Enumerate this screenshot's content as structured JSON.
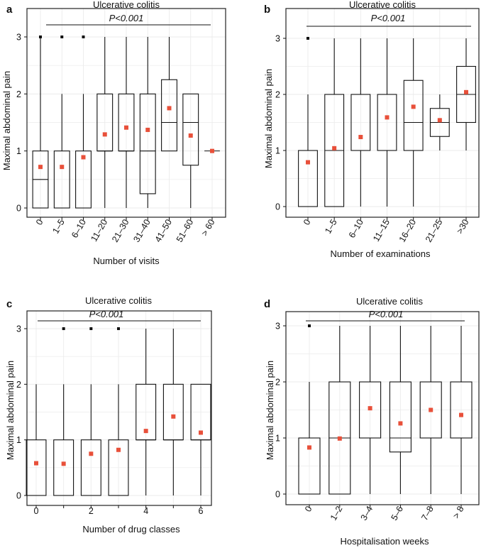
{
  "chart_data": [
    {
      "panel": "a",
      "type": "box",
      "title": "Ulcerative colitis",
      "annotation": "P<0.001",
      "xlabel": "Number of visits",
      "ylabel": "Maximal abdominal pain",
      "ylim": [
        0,
        3
      ],
      "yticks": [
        "0",
        "1",
        "2",
        "3"
      ],
      "categories": [
        "0",
        "1–5",
        "6–10",
        "11–20",
        "21–30",
        "31–40",
        "41–50",
        "51–60",
        "> 60"
      ],
      "boxes": [
        {
          "low": 0,
          "q1": 0,
          "median": 0.5,
          "q3": 1,
          "high": 3,
          "mean": 0.72,
          "outliers": [
            3
          ]
        },
        {
          "low": 0,
          "q1": 0,
          "median": 0,
          "q3": 1,
          "high": 2,
          "mean": 0.72,
          "outliers": [
            3
          ]
        },
        {
          "low": 0,
          "q1": 0,
          "median": 0,
          "q3": 1,
          "high": 2,
          "mean": 0.89,
          "outliers": [
            3
          ]
        },
        {
          "low": 0,
          "q1": 1,
          "median": 1,
          "q3": 2,
          "high": 3,
          "mean": 1.29,
          "outliers": []
        },
        {
          "low": 0,
          "q1": 1,
          "median": 1,
          "q3": 2,
          "high": 3,
          "mean": 1.41,
          "outliers": []
        },
        {
          "low": 0,
          "q1": 0.25,
          "median": 1,
          "q3": 2,
          "high": 3,
          "mean": 1.37,
          "outliers": []
        },
        {
          "low": 1,
          "q1": 1,
          "median": 1.5,
          "q3": 2.25,
          "high": 3,
          "mean": 1.75,
          "outliers": []
        },
        {
          "low": 0,
          "q1": 0.75,
          "median": 1.5,
          "q3": 2,
          "high": 2,
          "mean": 1.27,
          "outliers": []
        },
        {
          "low": 1,
          "q1": 1,
          "median": 1,
          "q3": 1,
          "high": 1,
          "mean": 1.0,
          "outliers": []
        }
      ]
    },
    {
      "panel": "b",
      "type": "box",
      "title": "Ulcerative colitis",
      "annotation": "P<0.001",
      "xlabel": "Number of  examinations",
      "ylabel": "Maximal abdominal pain",
      "ylim": [
        0,
        3
      ],
      "yticks": [
        "0",
        "1",
        "2",
        "3"
      ],
      "categories": [
        "0",
        "1–5",
        "6–10",
        "11–15",
        "16–20",
        "21–25",
        ">30"
      ],
      "boxes": [
        {
          "low": 0,
          "q1": 0,
          "median": 0,
          "q3": 1,
          "high": 2,
          "mean": 0.79,
          "outliers": [
            3
          ]
        },
        {
          "low": 0,
          "q1": 0,
          "median": 1,
          "q3": 2,
          "high": 3,
          "mean": 1.04,
          "outliers": []
        },
        {
          "low": 0,
          "q1": 1,
          "median": 1,
          "q3": 2,
          "high": 3,
          "mean": 1.24,
          "outliers": []
        },
        {
          "low": 0,
          "q1": 1,
          "median": 1,
          "q3": 2,
          "high": 3,
          "mean": 1.59,
          "outliers": []
        },
        {
          "low": 0,
          "q1": 1,
          "median": 1.5,
          "q3": 2.25,
          "high": 3,
          "mean": 1.78,
          "outliers": []
        },
        {
          "low": 1,
          "q1": 1.25,
          "median": 1.5,
          "q3": 1.75,
          "high": 2,
          "mean": 1.54,
          "outliers": []
        },
        {
          "low": 1,
          "q1": 1.5,
          "median": 2,
          "q3": 2.5,
          "high": 3,
          "mean": 2.04,
          "outliers": []
        }
      ]
    },
    {
      "panel": "c",
      "type": "box",
      "title": "Ulcerative colitis",
      "annotation": "P<0.001",
      "xlabel": "Number of drug classes",
      "ylabel": "Maximal abdominal pain",
      "ylim": [
        0,
        3
      ],
      "yticks": [
        "0",
        "1",
        "2",
        "3"
      ],
      "xticks": [
        "0",
        "2",
        "4",
        "6"
      ],
      "categories": [
        "0",
        "1",
        "2",
        "3",
        "4",
        "5",
        "6"
      ],
      "boxes": [
        {
          "low": 0,
          "q1": 0,
          "median": 0,
          "q3": 1,
          "high": 2,
          "mean": 0.58,
          "outliers": []
        },
        {
          "low": 0,
          "q1": 0,
          "median": 0,
          "q3": 1,
          "high": 2,
          "mean": 0.57,
          "outliers": [
            3
          ]
        },
        {
          "low": 0,
          "q1": 0,
          "median": 0,
          "q3": 1,
          "high": 2,
          "mean": 0.75,
          "outliers": [
            3
          ]
        },
        {
          "low": 0,
          "q1": 0,
          "median": 0,
          "q3": 1,
          "high": 2,
          "mean": 0.82,
          "outliers": [
            3
          ]
        },
        {
          "low": 0,
          "q1": 1,
          "median": 1,
          "q3": 2,
          "high": 3,
          "mean": 1.16,
          "outliers": []
        },
        {
          "low": 0,
          "q1": 1,
          "median": 1,
          "q3": 2,
          "high": 3,
          "mean": 1.42,
          "outliers": []
        },
        {
          "low": 0,
          "q1": 1,
          "median": 1,
          "q3": 2,
          "high": 2,
          "mean": 1.13,
          "outliers": []
        }
      ]
    },
    {
      "panel": "d",
      "type": "box",
      "title": "Ulcerative colitis",
      "annotation": "P<0.001",
      "xlabel": "Hospitalisation weeks",
      "ylabel": "Maximal abdominal pain",
      "ylim": [
        0,
        3
      ],
      "yticks": [
        "0",
        "1",
        "2",
        "3"
      ],
      "categories": [
        "0",
        "1–2",
        "3–4",
        "5–6",
        "7–8",
        "> 8"
      ],
      "boxes": [
        {
          "low": 0,
          "q1": 0,
          "median": 0,
          "q3": 1,
          "high": 2,
          "mean": 0.83,
          "outliers": [
            3
          ]
        },
        {
          "low": 0,
          "q1": 0,
          "median": 1,
          "q3": 2,
          "high": 3,
          "mean": 0.99,
          "outliers": []
        },
        {
          "low": 0,
          "q1": 1,
          "median": 1,
          "q3": 2,
          "high": 3,
          "mean": 1.53,
          "outliers": []
        },
        {
          "low": 0,
          "q1": 0.75,
          "median": 1,
          "q3": 2,
          "high": 3,
          "mean": 1.26,
          "outliers": []
        },
        {
          "low": 0,
          "q1": 1,
          "median": 1,
          "q3": 2,
          "high": 3,
          "mean": 1.5,
          "outliers": []
        },
        {
          "low": 0,
          "q1": 1,
          "median": 1,
          "q3": 2,
          "high": 3,
          "mean": 1.41,
          "outliers": []
        }
      ]
    }
  ],
  "colors": {
    "mean_marker": "#e8503a",
    "box_line": "#111111",
    "grid": "#ebebeb",
    "frame": "#222222",
    "background": "#ffffff"
  }
}
